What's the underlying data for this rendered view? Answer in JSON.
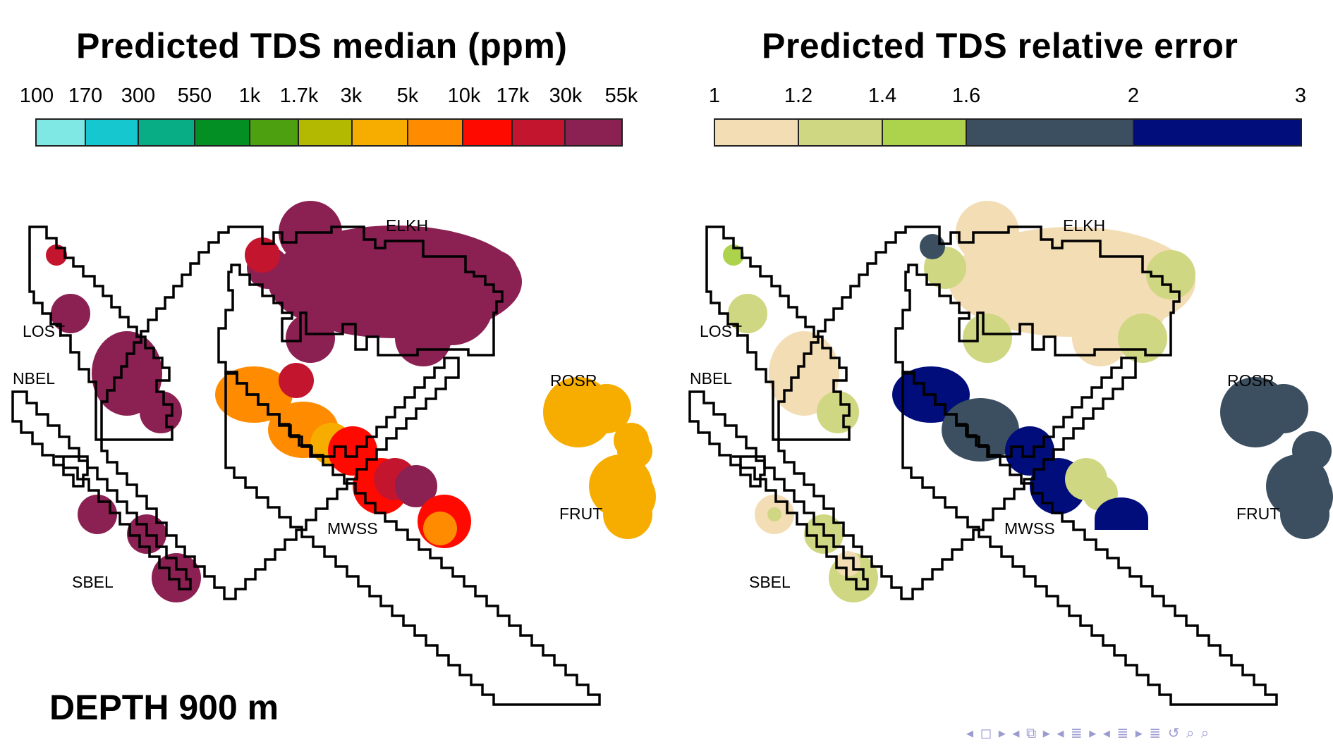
{
  "left_panel": {
    "title": "Predicted TDS median (ppm)",
    "ticks": [
      "100",
      "170",
      "300",
      "550",
      "1k",
      "1.7k",
      "3k",
      "5k",
      "10k",
      "17k",
      "30k",
      "55k"
    ],
    "colors": [
      "#7fe8e5",
      "#16c7cf",
      "#08ad85",
      "#048f24",
      "#4da010",
      "#b3b800",
      "#f7ad00",
      "#ff8c00",
      "#ff0a00",
      "#c4152e",
      "#8b2052"
    ]
  },
  "right_panel": {
    "title": "Predicted TDS relative error",
    "ticks": [
      "1",
      "1.2",
      "1.4",
      "1.6",
      "2",
      "3"
    ],
    "colors": [
      "#f3ddb4",
      "#d0d782",
      "#add24b",
      "#3b4f60",
      "#000d7a"
    ]
  },
  "region_labels": {
    "lost": "LOST",
    "nbel": "NBEL",
    "sbel": "SBEL",
    "elkh": "ELKH",
    "mwss": "MWSS",
    "rosr": "ROSR",
    "frut": "FRUT"
  },
  "depth_label": "DEPTH 900 m",
  "nav_icons": "◂ ◻ ▸ ◂ ⧉ ▸ ◂ ≣ ▸ ◂ ≣ ▸   ≣   ↺ ⌕ ⌕"
}
